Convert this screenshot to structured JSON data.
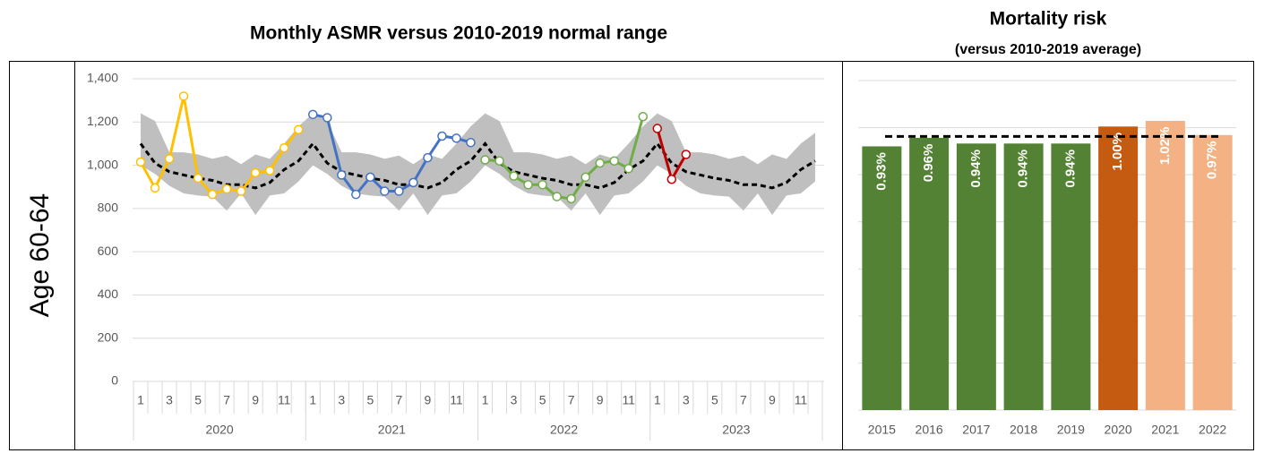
{
  "row_label": "Age 60-64",
  "chart_data": [
    {
      "type": "line",
      "title": "Monthly ASMR versus 2010-2019 normal range",
      "categories": [
        "1",
        null,
        "3",
        null,
        "5",
        null,
        "7",
        null,
        "9",
        null,
        "11",
        null,
        "1",
        null,
        "3",
        null,
        "5",
        null,
        "7",
        null,
        "9",
        null,
        "11",
        null,
        "1",
        null,
        "3",
        null,
        "5",
        null,
        "7",
        null,
        "9",
        null,
        "11",
        null,
        "1",
        null,
        "3",
        null,
        "5",
        null,
        "7",
        null,
        "9",
        null,
        "11",
        null
      ],
      "groups": [
        "2020",
        "2021",
        "2022",
        "2023"
      ],
      "ylim": [
        0,
        1400
      ],
      "yticks": [
        0,
        200,
        400,
        600,
        800,
        {
          "value": 1000,
          "label": "1,000"
        },
        {
          "value": 1200,
          "label": "1,200"
        },
        {
          "value": 1400,
          "label": "1,400"
        }
      ],
      "grid": true,
      "band": {
        "color": "#bfbfbf",
        "upper": [
          1240,
          1205,
          1060,
          1060,
          1050,
          1030,
          1045,
          1005,
          1050,
          1030,
          1100,
          1180,
          1240,
          1205,
          1060,
          1060,
          1050,
          1030,
          1045,
          1005,
          1050,
          1030,
          1100,
          1180,
          1240,
          1205,
          1060,
          1060,
          1050,
          1030,
          1045,
          1005,
          1050,
          1030,
          1100,
          1180,
          1240,
          1205,
          1060,
          1060,
          1050,
          1030,
          1045,
          1005,
          1050,
          1030,
          1100,
          1150
        ],
        "lower": [
          1000,
          960,
          905,
          870,
          860,
          855,
          790,
          870,
          770,
          860,
          870,
          925,
          1000,
          960,
          905,
          870,
          860,
          855,
          790,
          870,
          770,
          860,
          870,
          925,
          1000,
          960,
          905,
          870,
          860,
          855,
          790,
          870,
          770,
          860,
          870,
          925,
          1000,
          960,
          905,
          870,
          860,
          855,
          790,
          870,
          770,
          860,
          870,
          925
        ]
      },
      "mean": {
        "color": "#000000",
        "dashed": true,
        "values": [
          1100,
          1010,
          970,
          955,
          940,
          930,
          910,
          910,
          895,
          920,
          980,
          1020,
          1100,
          1010,
          970,
          955,
          940,
          930,
          910,
          910,
          895,
          920,
          980,
          1020,
          1100,
          1010,
          970,
          955,
          940,
          930,
          910,
          910,
          895,
          920,
          980,
          1020,
          1100,
          1010,
          970,
          955,
          940,
          930,
          910,
          910,
          895,
          920,
          980,
          1020
        ]
      },
      "series": [
        {
          "color": "#ffc000",
          "values": [
            1015,
            895,
            1030,
            1320,
            940,
            865,
            890,
            880,
            965,
            975,
            1080,
            1165,
            null,
            null,
            null,
            null,
            null,
            null,
            null,
            null,
            null,
            null,
            null,
            null,
            null,
            null,
            null,
            null,
            null,
            null,
            null,
            null,
            null,
            null,
            null,
            null,
            null,
            null,
            null,
            null,
            null,
            null,
            null,
            null,
            null,
            null,
            null,
            null
          ]
        },
        {
          "color": "#4472c4",
          "values": [
            null,
            null,
            null,
            null,
            null,
            null,
            null,
            null,
            null,
            null,
            null,
            null,
            1235,
            1220,
            955,
            865,
            945,
            880,
            880,
            920,
            1035,
            1135,
            1125,
            1105,
            null,
            null,
            null,
            null,
            null,
            null,
            null,
            null,
            null,
            null,
            null,
            null,
            null,
            null,
            null,
            null,
            null,
            null,
            null,
            null,
            null,
            null,
            null,
            null
          ]
        },
        {
          "color": "#70ad47",
          "values": [
            null,
            null,
            null,
            null,
            null,
            null,
            null,
            null,
            null,
            null,
            null,
            null,
            null,
            null,
            null,
            null,
            null,
            null,
            null,
            null,
            null,
            null,
            null,
            null,
            1025,
            1020,
            950,
            910,
            910,
            855,
            845,
            945,
            1010,
            1020,
            985,
            1225,
            null,
            null,
            null,
            null,
            null,
            null,
            null,
            null,
            null,
            null,
            null,
            null
          ]
        },
        {
          "color": "#c00000",
          "values": [
            null,
            null,
            null,
            null,
            null,
            null,
            null,
            null,
            null,
            null,
            null,
            null,
            null,
            null,
            null,
            null,
            null,
            null,
            null,
            null,
            null,
            null,
            null,
            null,
            null,
            null,
            null,
            null,
            null,
            null,
            null,
            null,
            null,
            null,
            null,
            null,
            1170,
            935,
            1050,
            null,
            null,
            null,
            null,
            null,
            null,
            null,
            null,
            null
          ]
        }
      ]
    },
    {
      "type": "bar",
      "title": "Mortality risk",
      "subtitle": "(versus 2010-2019 average)",
      "categories": [
        "2015",
        "2016",
        "2017",
        "2018",
        "2019",
        "2020",
        "2021",
        "2022"
      ],
      "values": [
        0.93,
        0.96,
        0.94,
        0.94,
        0.94,
        1.0,
        1.02,
        0.97
      ],
      "value_labels": [
        "0.93%",
        "0.96%",
        "0.94%",
        "0.94%",
        "0.94%",
        "1.00%",
        "1.02%",
        "0.97%"
      ],
      "colors": [
        "#548235",
        "#548235",
        "#548235",
        "#548235",
        "#548235",
        "#c55a11",
        "#f4b183",
        "#f4b183"
      ],
      "ylim": [
        0,
        1.162
      ],
      "yticks": [
        0,
        0.166,
        0.332,
        0.498,
        0.664,
        0.83,
        0.996,
        1.162
      ],
      "grid": true,
      "reference_line": 0.965
    }
  ]
}
